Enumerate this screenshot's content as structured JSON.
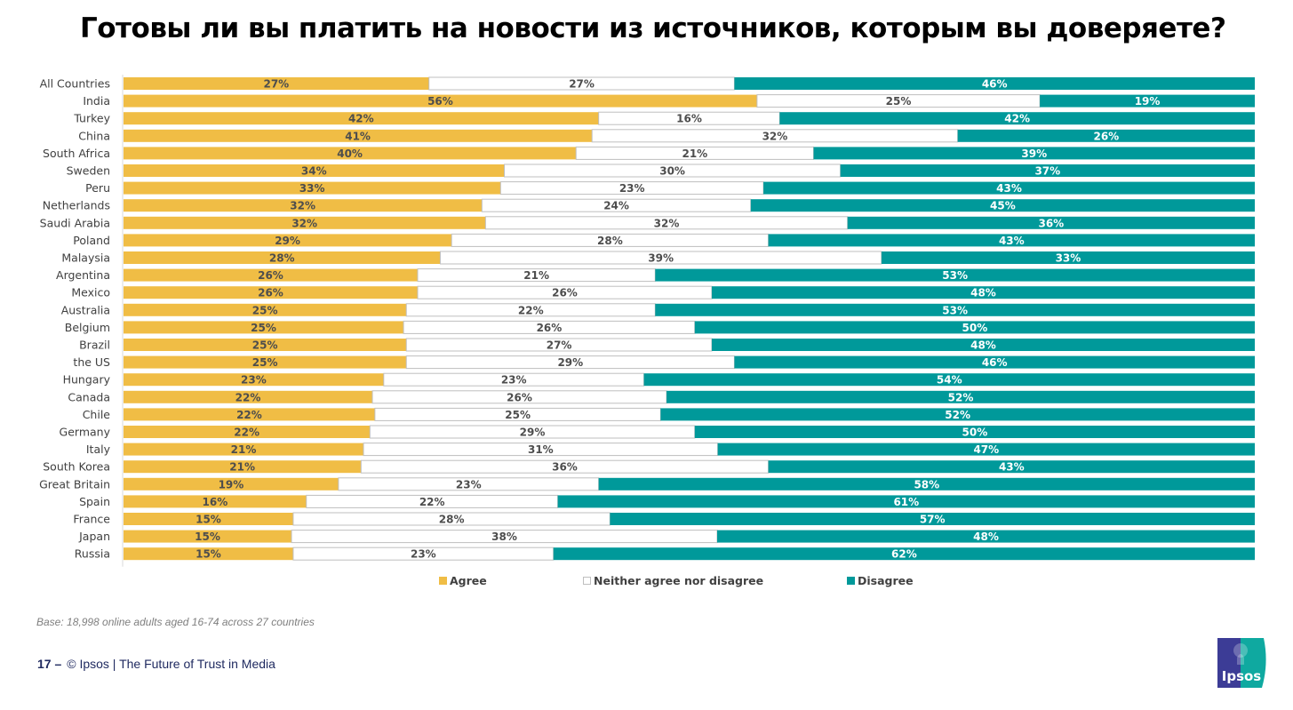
{
  "page": {
    "title": "Готовы ли вы платить на новости из источников, которым вы доверяете?",
    "base_note": "Base: 18,998 online adults aged 16-74 across 27 countries",
    "footer_page": "17 –",
    "footer_text": "© Ipsos | The Future of Trust in Media",
    "logo_text": "Ipsos"
  },
  "colors": {
    "agree": "#F0BD45",
    "neither": "#FFFFFF",
    "neither_border": "#BFBFBF",
    "disagree": "#00999A",
    "label_dark": "#4D4D4D",
    "label_light": "#FFFFFF",
    "logo_blue": "#3C3C96",
    "logo_teal": "#0FA9A0"
  },
  "chart_data": {
    "type": "bar",
    "orientation": "horizontal-stacked-100",
    "title": "Готовы ли вы платить на новости из источников, которым вы доверяете?",
    "xlabel": "",
    "ylabel": "",
    "xlim": [
      0,
      100
    ],
    "grid": false,
    "legend_position": "bottom",
    "categories": [
      "All Countries",
      "India",
      "Turkey",
      "China",
      "South Africa",
      "Sweden",
      "Peru",
      "Netherlands",
      "Saudi Arabia",
      "Poland",
      "Malaysia",
      "Argentina",
      "Mexico",
      "Australia",
      "Belgium",
      "Brazil",
      "the US",
      "Hungary",
      "Canada",
      "Chile",
      "Germany",
      "Italy",
      "South Korea",
      "Great Britain",
      "Spain",
      "France",
      "Japan",
      "Russia"
    ],
    "series": [
      {
        "name": "Agree",
        "values": [
          27,
          56,
          42,
          41,
          40,
          34,
          33,
          32,
          32,
          29,
          28,
          26,
          26,
          25,
          25,
          25,
          25,
          23,
          22,
          22,
          22,
          21,
          21,
          19,
          16,
          15,
          15,
          15
        ]
      },
      {
        "name": "Neither agree nor disagree",
        "values": [
          27,
          25,
          16,
          32,
          21,
          30,
          23,
          24,
          32,
          28,
          39,
          21,
          26,
          22,
          26,
          27,
          29,
          23,
          26,
          25,
          29,
          31,
          36,
          23,
          22,
          28,
          38,
          23
        ]
      },
      {
        "name": "Disagree",
        "values": [
          46,
          19,
          42,
          26,
          39,
          37,
          43,
          45,
          36,
          43,
          33,
          53,
          48,
          53,
          50,
          48,
          46,
          54,
          52,
          52,
          50,
          47,
          43,
          58,
          61,
          57,
          48,
          62
        ]
      }
    ]
  }
}
